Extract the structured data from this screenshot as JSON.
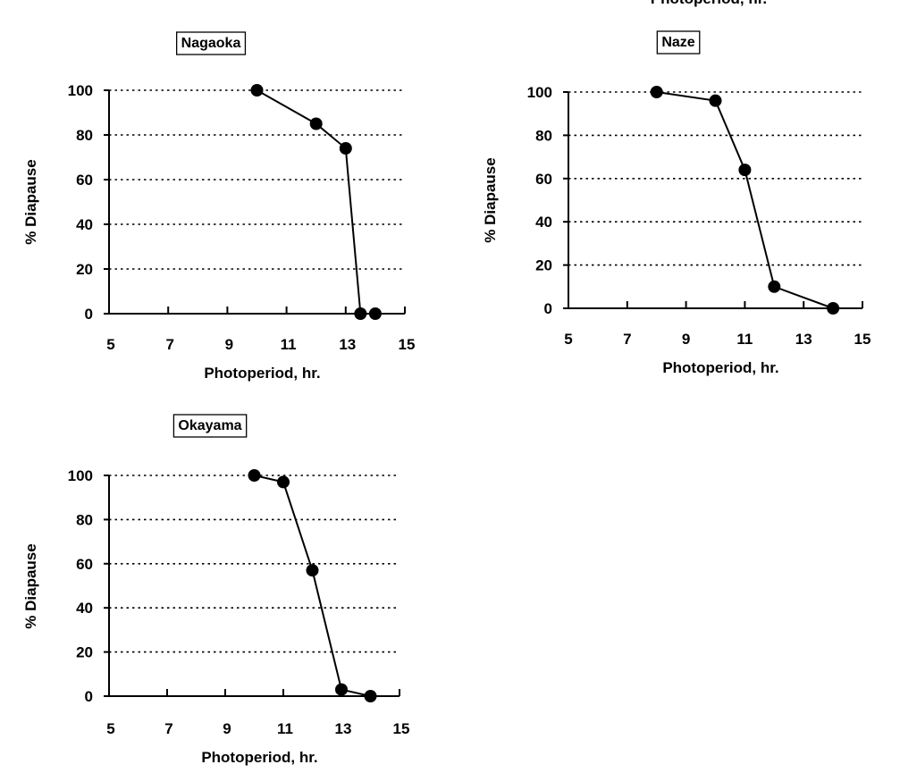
{
  "top_cropped_text": "Photoperiod, hr.",
  "chart_data": [
    {
      "type": "line",
      "title": "Nagaoka",
      "xlabel": "Photoperiod, hr.",
      "ylabel": "% Diapause",
      "xlim": [
        5,
        15
      ],
      "ylim": [
        0,
        100
      ],
      "xticks": [
        5,
        7,
        9,
        11,
        13,
        15
      ],
      "yticks": [
        0,
        20,
        40,
        60,
        80,
        100
      ],
      "grid": "horizontal dotted",
      "series": [
        {
          "x": [
            10,
            12,
            13,
            13.5,
            14
          ],
          "y": [
            100,
            85,
            74,
            0,
            0
          ]
        }
      ]
    },
    {
      "type": "line",
      "title": "Naze",
      "xlabel": "Photoperiod, hr.",
      "ylabel": "% Diapause",
      "xlim": [
        5,
        15
      ],
      "ylim": [
        0,
        100
      ],
      "xticks": [
        5,
        7,
        9,
        11,
        13,
        15
      ],
      "yticks": [
        0,
        20,
        40,
        60,
        80,
        100
      ],
      "grid": "horizontal dotted",
      "series": [
        {
          "x": [
            8,
            10,
            11,
            12,
            14
          ],
          "y": [
            100,
            96,
            64,
            10,
            0
          ]
        }
      ]
    },
    {
      "type": "line",
      "title": "Okayama",
      "xlabel": "Photoperiod, hr.",
      "ylabel": "% Diapause",
      "xlim": [
        5,
        15
      ],
      "ylim": [
        0,
        100
      ],
      "xticks": [
        5,
        7,
        9,
        11,
        13,
        15
      ],
      "yticks": [
        0,
        20,
        40,
        60,
        80,
        100
      ],
      "grid": "horizontal dotted",
      "series": [
        {
          "x": [
            10,
            11,
            12,
            13,
            14
          ],
          "y": [
            100,
            97,
            57,
            3,
            0
          ]
        }
      ]
    }
  ]
}
